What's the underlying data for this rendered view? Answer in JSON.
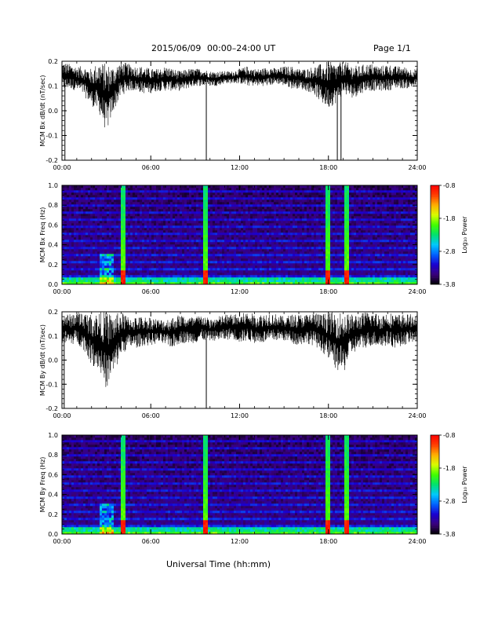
{
  "header": {
    "date": "2015/06/09",
    "range": "00:00–24:00 UT",
    "page": "Page 1/1"
  },
  "footer": {
    "xlabel": "Universal Time (hh:mm)"
  },
  "colorbar": {
    "label": "Log₁₀ Power",
    "ticks": [
      "-0.8",
      "-1.8",
      "-2.8",
      "-3.8"
    ],
    "range": [
      -3.8,
      -0.8
    ],
    "colors": [
      "#000000",
      "#3a007a",
      "#1a00d0",
      "#0060ff",
      "#00c8ff",
      "#00e070",
      "#40ff00",
      "#d8ff00",
      "#ffb000",
      "#ff4000",
      "#ff0000"
    ]
  },
  "chart_data": [
    {
      "type": "line",
      "ylabel": "MCM Bx dB/dt (nT/sec)",
      "ylim": [
        -0.2,
        0.2
      ],
      "yticks": [
        "0.2",
        "0.1",
        "0.0",
        "-0.1",
        "-0.2"
      ],
      "xticks": [
        "00:00",
        "06:00",
        "12:00",
        "18:00",
        "24:00"
      ],
      "xlim_hours": [
        0,
        24
      ],
      "series": [
        {
          "x_hours": [
            0,
            0.5,
            1,
            1.5,
            2,
            2.5,
            3,
            3.5,
            4,
            4.5,
            5,
            5.5,
            6,
            6.5,
            7,
            7.5,
            8,
            8.5,
            9,
            9.5,
            10,
            10.5,
            11,
            11.5,
            12,
            12.5,
            13,
            13.5,
            14,
            14.5,
            15,
            15.5,
            16,
            16.5,
            17,
            17.5,
            18,
            18.5,
            19,
            19.5,
            20,
            20.5,
            21,
            21.5,
            22,
            22.5,
            23,
            23.5,
            24
          ],
          "upper": [
            0.2,
            0.19,
            0.18,
            0.18,
            0.17,
            0.2,
            0.19,
            0.18,
            0.2,
            0.19,
            0.18,
            0.18,
            0.17,
            0.17,
            0.18,
            0.17,
            0.16,
            0.17,
            0.17,
            0.17,
            0.16,
            0.16,
            0.16,
            0.16,
            0.17,
            0.18,
            0.17,
            0.17,
            0.18,
            0.17,
            0.18,
            0.18,
            0.17,
            0.17,
            0.18,
            0.19,
            0.2,
            0.19,
            0.2,
            0.19,
            0.18,
            0.19,
            0.19,
            0.18,
            0.19,
            0.18,
            0.18,
            0.17,
            0.17
          ],
          "lower": [
            0.08,
            0.09,
            0.08,
            0.06,
            0.02,
            -0.01,
            -0.09,
            0.0,
            0.06,
            0.08,
            0.08,
            0.07,
            0.07,
            0.08,
            0.08,
            0.08,
            0.08,
            0.09,
            0.1,
            0.1,
            0.1,
            0.1,
            0.11,
            0.11,
            0.11,
            0.1,
            0.1,
            0.1,
            0.1,
            0.11,
            0.1,
            0.09,
            0.09,
            0.08,
            0.07,
            0.03,
            0.01,
            0.03,
            0.07,
            0.05,
            0.06,
            0.08,
            0.08,
            0.08,
            0.08,
            0.09,
            0.09,
            0.09,
            0.1
          ],
          "spikes": [
            [
              0.2,
              -0.2
            ],
            [
              9.75,
              -0.2
            ],
            [
              18.6,
              -0.2
            ],
            [
              18.85,
              -0.2
            ]
          ]
        }
      ]
    },
    {
      "type": "heatmap",
      "ylabel": "MCM Bx Freq (Hz)",
      "ylim": [
        0.0,
        1.0
      ],
      "yticks": [
        "1.0",
        "0.8",
        "0.6",
        "0.4",
        "0.2",
        "0.0"
      ],
      "xticks": [
        "00:00",
        "06:00",
        "12:00",
        "18:00",
        "24:00"
      ],
      "xlim_hours": [
        0,
        24
      ],
      "bright_columns_hours": [
        4.2,
        9.75,
        18.0,
        19.2
      ],
      "active_intervals_hours": [
        [
          2.5,
          3.5
        ]
      ]
    },
    {
      "type": "line",
      "ylabel": "MCM By dB/dt (nT/sec)",
      "ylim": [
        -0.2,
        0.2
      ],
      "yticks": [
        "0.2",
        "0.1",
        "0.0",
        "-0.1",
        "-0.2"
      ],
      "xticks": [
        "00:00",
        "06:00",
        "12:00",
        "18:00",
        "24:00"
      ],
      "xlim_hours": [
        0,
        24
      ],
      "series": [
        {
          "x_hours": [
            0,
            0.5,
            1,
            1.5,
            2,
            2.5,
            3,
            3.5,
            4,
            4.5,
            5,
            5.5,
            6,
            6.5,
            7,
            7.5,
            8,
            8.5,
            9,
            9.5,
            10,
            10.5,
            11,
            11.5,
            12,
            12.5,
            13,
            13.5,
            14,
            14.5,
            15,
            15.5,
            16,
            16.5,
            17,
            17.5,
            18,
            18.5,
            19,
            19.5,
            20,
            20.5,
            21,
            21.5,
            22,
            22.5,
            23,
            23.5,
            24
          ],
          "upper": [
            0.2,
            0.19,
            0.2,
            0.2,
            0.19,
            0.2,
            0.2,
            0.19,
            0.2,
            0.18,
            0.18,
            0.18,
            0.18,
            0.17,
            0.17,
            0.18,
            0.19,
            0.18,
            0.18,
            0.19,
            0.17,
            0.18,
            0.19,
            0.19,
            0.19,
            0.2,
            0.19,
            0.19,
            0.2,
            0.19,
            0.18,
            0.19,
            0.19,
            0.19,
            0.2,
            0.19,
            0.2,
            0.2,
            0.2,
            0.19,
            0.19,
            0.2,
            0.2,
            0.19,
            0.2,
            0.19,
            0.19,
            0.19,
            0.19
          ],
          "lower": [
            0.07,
            0.06,
            0.07,
            0.04,
            -0.02,
            -0.04,
            -0.12,
            -0.06,
            0.02,
            0.05,
            0.05,
            0.06,
            0.06,
            0.07,
            0.06,
            0.05,
            0.07,
            0.07,
            0.07,
            0.08,
            0.08,
            0.08,
            0.08,
            0.09,
            0.07,
            0.08,
            0.07,
            0.07,
            0.07,
            0.08,
            0.08,
            0.07,
            0.06,
            0.07,
            0.06,
            0.04,
            0.0,
            -0.04,
            -0.06,
            0.02,
            0.04,
            0.05,
            0.06,
            0.05,
            0.06,
            0.05,
            0.06,
            0.07,
            0.07
          ],
          "spikes": [
            [
              0.15,
              -0.2
            ],
            [
              9.75,
              -0.2
            ]
          ]
        }
      ]
    },
    {
      "type": "heatmap",
      "ylabel": "MCM By Freq (Hz)",
      "ylim": [
        0.0,
        1.0
      ],
      "yticks": [
        "1.0",
        "0.8",
        "0.6",
        "0.4",
        "0.2",
        "0.0"
      ],
      "xticks": [
        "00:00",
        "06:00",
        "12:00",
        "18:00",
        "24:00"
      ],
      "xlim_hours": [
        0,
        24
      ],
      "bright_columns_hours": [
        4.2,
        9.75,
        18.0,
        19.2
      ],
      "active_intervals_hours": [
        [
          2.5,
          3.5
        ]
      ]
    }
  ]
}
